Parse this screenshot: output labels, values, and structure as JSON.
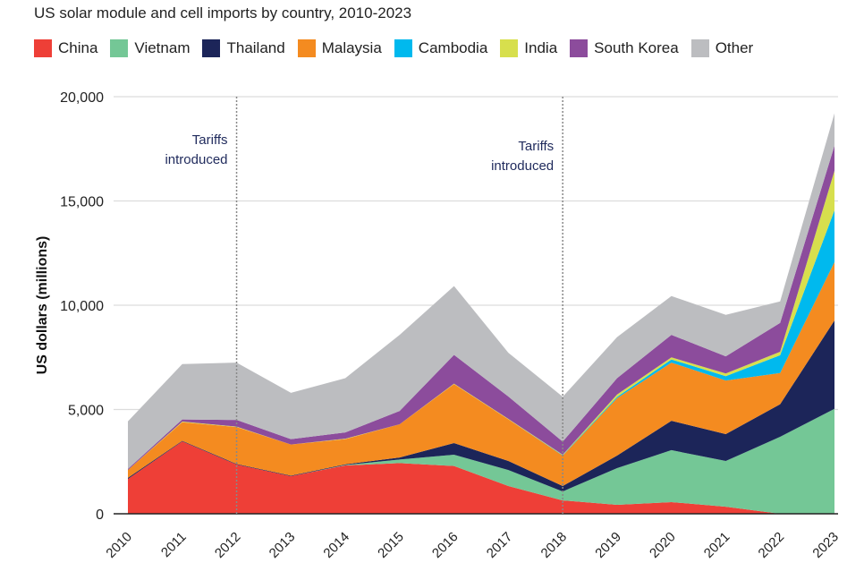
{
  "chart_data": {
    "type": "area",
    "stacked": true,
    "title": "US solar module and cell imports by country, 2010-2023",
    "xlabel": "",
    "ylabel": "US dollars (millions)",
    "ylim": [
      0,
      20000
    ],
    "yticks": [
      "0",
      "5,000",
      "10,000",
      "15,000",
      "20,000"
    ],
    "yticks_values": [
      0,
      5000,
      10000,
      15000,
      20000
    ],
    "grid": true,
    "legend_position": "top",
    "x": [
      "2010",
      "2011",
      "2012",
      "2013",
      "2014",
      "2015",
      "2016",
      "2017",
      "2018",
      "2019",
      "2020",
      "2021",
      "2022",
      "2023"
    ],
    "series": [
      {
        "name": "China",
        "color": "#ee3f37",
        "values": [
          1670,
          3470,
          2360,
          1800,
          2320,
          2430,
          2290,
          1330,
          640,
          430,
          560,
          340,
          0,
          0
        ]
      },
      {
        "name": "Vietnam",
        "color": "#74c796",
        "values": [
          0,
          0,
          0,
          0,
          20,
          170,
          540,
          770,
          430,
          1760,
          2490,
          2190,
          3690,
          5030
        ]
      },
      {
        "name": "Thailand",
        "color": "#1c2559",
        "values": [
          50,
          30,
          30,
          30,
          30,
          100,
          560,
          430,
          260,
          600,
          1410,
          1290,
          1560,
          4240
        ]
      },
      {
        "name": "Malaysia",
        "color": "#f48b20",
        "values": [
          380,
          890,
          1770,
          1490,
          1210,
          1590,
          2830,
          2000,
          1460,
          2750,
          2790,
          2570,
          1500,
          2800
        ]
      },
      {
        "name": "Cambodia",
        "color": "#00b9ee",
        "values": [
          0,
          0,
          0,
          0,
          0,
          0,
          0,
          0,
          20,
          60,
          150,
          210,
          850,
          2480
        ]
      },
      {
        "name": "India",
        "color": "#d7df4d",
        "values": [
          0,
          30,
          20,
          0,
          20,
          0,
          20,
          20,
          20,
          120,
          100,
          130,
          170,
          1900
        ]
      },
      {
        "name": "South Korea",
        "color": "#8c4c9c",
        "values": [
          50,
          100,
          320,
          260,
          300,
          640,
          1380,
          1070,
          630,
          780,
          1080,
          820,
          1380,
          1200
        ]
      },
      {
        "name": "Other",
        "color": "#bcbdc0",
        "values": [
          2280,
          2660,
          2750,
          2220,
          2600,
          3650,
          3300,
          2100,
          2150,
          1970,
          1860,
          1990,
          1030,
          1550
        ]
      }
    ],
    "annotations": [
      {
        "x": "2012",
        "label": "Tariffs introduced",
        "lines": [
          "Tariffs",
          "introduced"
        ]
      },
      {
        "x": "2018",
        "label": "Tariffs introduced",
        "lines": [
          "Tariffs",
          "introduced"
        ]
      }
    ],
    "annotation_color": "#1f2a5c"
  }
}
